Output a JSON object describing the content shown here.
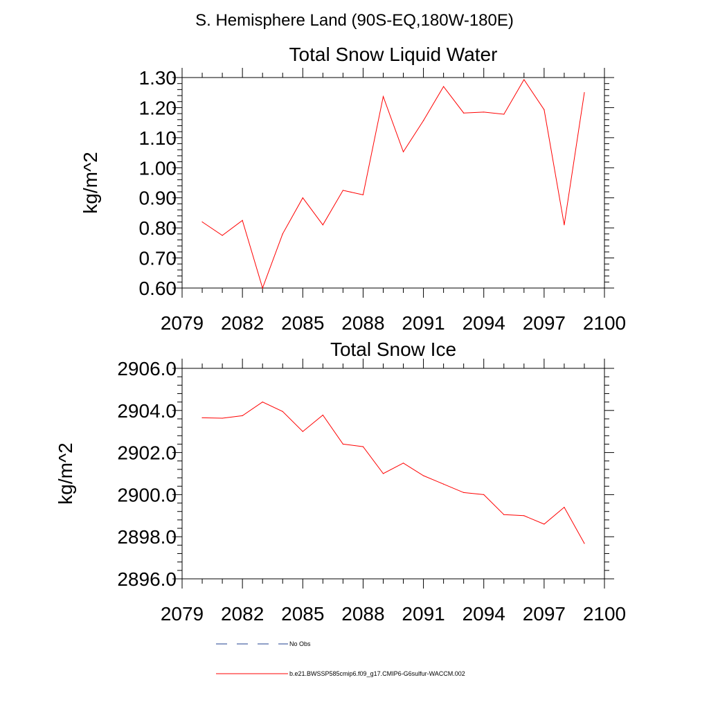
{
  "page_title": "S. Hemisphere Land (90S-EQ,180W-180E)",
  "colors": {
    "series": "#ff0000",
    "obs": "#1f3f8f",
    "axis": "#000000"
  },
  "legend": {
    "entries": [
      {
        "label": "No Obs",
        "style": "dashed",
        "color": "#1f3f8f"
      },
      {
        "label": "b.e21.BWSSP585cmip6.f09_g17.CMIP6-G6sulfur-WACCM.002",
        "style": "solid",
        "color": "#ff0000"
      }
    ]
  },
  "chart_data": [
    {
      "type": "line",
      "title": "Total Snow Liquid Water",
      "ylabel": "kg/m^2",
      "xlabel": "",
      "xlim": [
        2079,
        2100
      ],
      "ylim": [
        0.6,
        1.3
      ],
      "xticks": [
        2079,
        2082,
        2085,
        2088,
        2091,
        2094,
        2097,
        2100
      ],
      "xtick_labels": [
        "2079",
        "2082",
        "2085",
        "2088",
        "2091",
        "2094",
        "2097",
        "2100"
      ],
      "yticks": [
        0.6,
        0.7,
        0.8,
        0.9,
        1.0,
        1.1,
        1.2,
        1.3
      ],
      "ytick_labels": [
        "0.60",
        "0.70",
        "0.80",
        "0.90",
        "1.00",
        "1.10",
        "1.20",
        "1.30"
      ],
      "grid": false,
      "series": [
        {
          "color": "#ff0000",
          "x": [
            2080,
            2081,
            2082,
            2083,
            2084,
            2085,
            2086,
            2087,
            2088,
            2089,
            2090,
            2091,
            2092,
            2093,
            2094,
            2095,
            2096,
            2097,
            2098,
            2099
          ],
          "values": [
            0.82,
            0.775,
            0.825,
            0.6,
            0.78,
            0.9,
            0.81,
            0.925,
            0.91,
            1.237,
            1.053,
            1.157,
            1.27,
            1.182,
            1.185,
            1.178,
            1.293,
            1.193,
            0.81,
            1.25
          ]
        }
      ]
    },
    {
      "type": "line",
      "title": "Total Snow Ice",
      "ylabel": "kg/m^2",
      "xlabel": "",
      "xlim": [
        2079,
        2100
      ],
      "ylim": [
        2896.0,
        2906.0
      ],
      "xticks": [
        2079,
        2082,
        2085,
        2088,
        2091,
        2094,
        2097,
        2100
      ],
      "xtick_labels": [
        "2079",
        "2082",
        "2085",
        "2088",
        "2091",
        "2094",
        "2097",
        "2100"
      ],
      "yticks": [
        2896,
        2898,
        2900,
        2902,
        2904,
        2906
      ],
      "ytick_labels": [
        "2896.0",
        "2898.0",
        "2900.0",
        "2902.0",
        "2904.0",
        "2906.0"
      ],
      "grid": false,
      "series": [
        {
          "color": "#ff0000",
          "x": [
            2080,
            2081,
            2082,
            2083,
            2084,
            2085,
            2086,
            2087,
            2088,
            2089,
            2090,
            2091,
            2092,
            2093,
            2094,
            2095,
            2096,
            2097,
            2098,
            2099
          ],
          "values": [
            2903.65,
            2903.63,
            2903.75,
            2904.4,
            2903.95,
            2903.0,
            2903.78,
            2902.4,
            2902.28,
            2901.0,
            2901.5,
            2900.9,
            2900.5,
            2900.1,
            2900.0,
            2899.05,
            2899.0,
            2898.6,
            2899.4,
            2897.68
          ]
        }
      ]
    }
  ]
}
